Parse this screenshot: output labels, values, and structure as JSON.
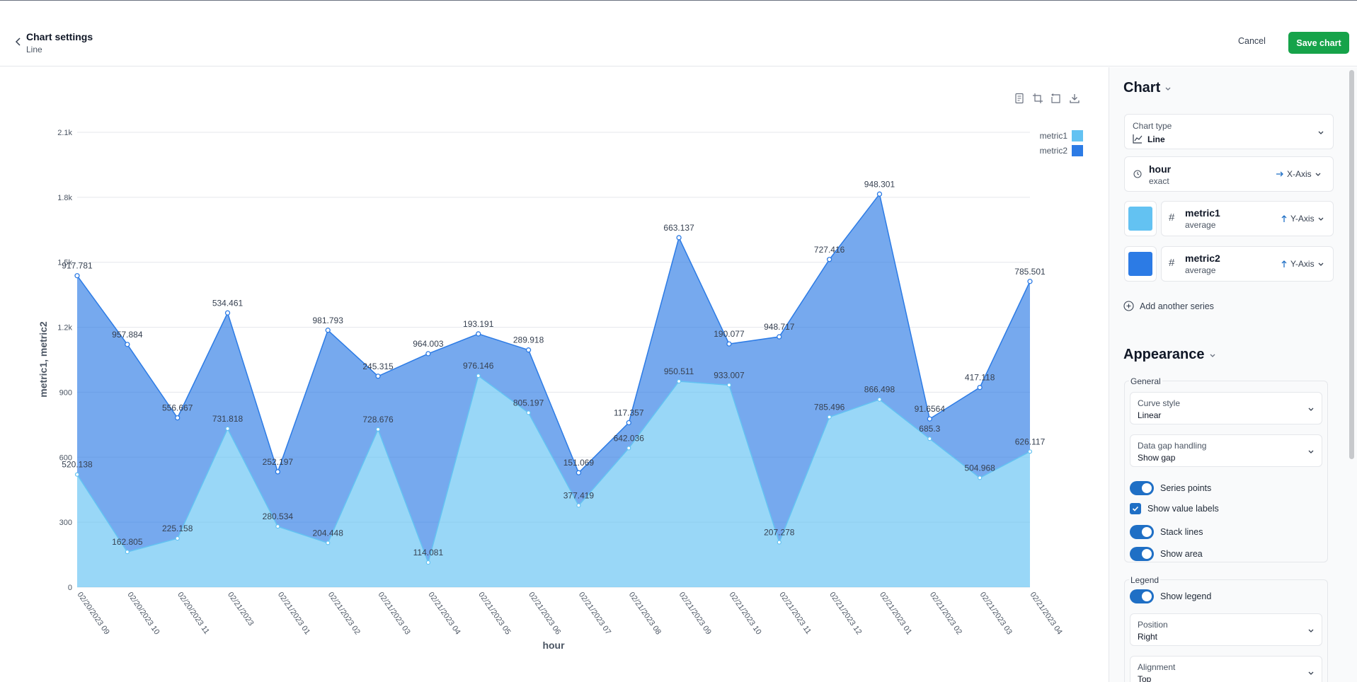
{
  "header": {
    "title": "Chart settings",
    "subtitle": "Line",
    "cancel_label": "Cancel",
    "save_label": "Save chart"
  },
  "chart_data": {
    "type": "area",
    "stacked": true,
    "xlabel": "hour",
    "ylabel": "metric1, metric2",
    "ylim": [
      0,
      2100
    ],
    "yticks": [
      "0",
      "300",
      "600",
      "900",
      "1.2k",
      "1.5k",
      "1.8k",
      "2.1k"
    ],
    "ytick_values": [
      0,
      300,
      600,
      900,
      1200,
      1500,
      1800,
      2100
    ],
    "categories": [
      "02/20/2023 09",
      "02/20/2023 10",
      "02/20/2023 11",
      "02/21/2023",
      "02/21/2023 01",
      "02/21/2023 02",
      "02/21/2023 03",
      "02/21/2023 04",
      "02/21/2023 05",
      "02/21/2023 06",
      "02/21/2023 07",
      "02/21/2023 08",
      "02/21/2023 09",
      "02/21/2023 10",
      "02/21/2023 11",
      "02/21/2023 12",
      "02/21/2023 01",
      "02/21/2023 02",
      "02/21/2023 03",
      "02/21/2023 04"
    ],
    "series": [
      {
        "name": "metric1",
        "color": "#63c2f2",
        "values": [
          520.138,
          162.805,
          225.158,
          731.818,
          280.534,
          204.448,
          728.676,
          114.081,
          976.146,
          805.197,
          377.419,
          642.036,
          950.511,
          933.007,
          207.278,
          785.496,
          866.498,
          685.3,
          504.968,
          626.117
        ]
      },
      {
        "name": "metric2",
        "color": "#2c7be5",
        "values": [
          917.781,
          957.884,
          556.667,
          534.461,
          252.197,
          981.793,
          245.315,
          964.003,
          193.191,
          289.918,
          151.069,
          117.357,
          663.137,
          190.077,
          948.717,
          727.416,
          948.301,
          91.6564,
          417.118,
          785.501
        ]
      }
    ],
    "grid": true,
    "legend": "top-right"
  },
  "panel": {
    "chart_section": "Chart",
    "chart_type_label": "Chart type",
    "chart_type_value": "Line",
    "x_field": {
      "name": "hour",
      "agg": "exact",
      "axis": "X-Axis"
    },
    "y_fields": [
      {
        "name": "metric1",
        "agg": "average",
        "axis": "Y-Axis",
        "color": "#63c2f2"
      },
      {
        "name": "metric2",
        "agg": "average",
        "axis": "Y-Axis",
        "color": "#2c7be5"
      }
    ],
    "add_series": "Add another series",
    "appearance_section": "Appearance",
    "general": {
      "title": "General",
      "curve_label": "Curve style",
      "curve_value": "Linear",
      "gap_label": "Data gap handling",
      "gap_value": "Show gap",
      "series_points": "Series points",
      "show_value_labels": "Show value labels",
      "stack_lines": "Stack lines",
      "show_area": "Show area"
    },
    "legend": {
      "title": "Legend",
      "show_legend": "Show legend",
      "position_label": "Position",
      "position_value": "Right",
      "alignment_label": "Alignment",
      "alignment_value": "Top"
    }
  }
}
